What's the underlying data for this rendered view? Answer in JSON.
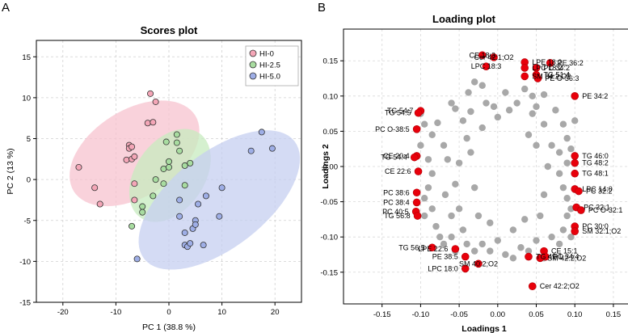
{
  "chart_data": [
    {
      "type": "scatter",
      "panel": "A",
      "title": "Scores plot",
      "xlabel": "PC 1 (38.8 %)",
      "ylabel": "PC 2 (13 %)",
      "xlim": [
        -25,
        25
      ],
      "ylim": [
        -15,
        17
      ],
      "xticks": [
        -20,
        -10,
        0,
        10,
        20
      ],
      "yticks": [
        -15,
        -10,
        -5,
        0,
        5,
        10,
        15
      ],
      "grid": true,
      "legend_position": "top-right",
      "series": [
        {
          "name": "HI-0",
          "color": "#f4a6b7",
          "ellipse_color": "#f7c3cf",
          "ellipse": {
            "cx": -6.5,
            "cy": 3.2,
            "rx": 13.5,
            "ry": 5.3,
            "angle_deg": 32
          },
          "points": [
            [
              -17,
              1.5
            ],
            [
              -14,
              -1
            ],
            [
              -13,
              -3
            ],
            [
              -8,
              2.4
            ],
            [
              -7.5,
              4.2
            ],
            [
              -7.5,
              3.8
            ],
            [
              -7,
              4
            ],
            [
              -7,
              2.5
            ],
            [
              -6.5,
              2.8
            ],
            [
              -6.5,
              -2.5
            ],
            [
              -6.5,
              -0.5
            ],
            [
              -4,
              6.9
            ],
            [
              -3.5,
              10.5
            ],
            [
              -3,
              7
            ],
            [
              -2.5,
              9.5
            ]
          ]
        },
        {
          "name": "HI-2.5",
          "color": "#a8dca0",
          "ellipse_color": "#c7ebbf",
          "ellipse": {
            "cx": 0.2,
            "cy": 0.5,
            "rx": 9.7,
            "ry": 4.2,
            "angle_deg": 55
          },
          "points": [
            [
              -7,
              -5.7
            ],
            [
              -5,
              -3.3
            ],
            [
              -5,
              -4
            ],
            [
              -3,
              -2
            ],
            [
              -2.5,
              0
            ],
            [
              -1,
              -0.5
            ],
            [
              -1,
              1.3
            ],
            [
              -0.5,
              4.6
            ],
            [
              0,
              1.5
            ],
            [
              0,
              2.2
            ],
            [
              1.5,
              4.5
            ],
            [
              1.5,
              5.5
            ],
            [
              2,
              3.5
            ],
            [
              3,
              1.7
            ],
            [
              3,
              -0.7
            ],
            [
              4,
              2
            ]
          ]
        },
        {
          "name": "HI-5.0",
          "color": "#9eaee6",
          "ellipse_color": "#c5cff0",
          "ellipse": {
            "cx": 9.5,
            "cy": -2.5,
            "rx": 18,
            "ry": 5.8,
            "angle_deg": 38
          },
          "points": [
            [
              -6,
              -9.7
            ],
            [
              2,
              -2.5
            ],
            [
              2,
              -4.5
            ],
            [
              3,
              -6.5
            ],
            [
              3,
              -8
            ],
            [
              3.5,
              -8.2
            ],
            [
              4,
              -7.8
            ],
            [
              4.5,
              -6
            ],
            [
              5,
              -5
            ],
            [
              5,
              -5.5
            ],
            [
              5.5,
              -3
            ],
            [
              6.5,
              -8
            ],
            [
              7,
              -2
            ],
            [
              9.5,
              -4.5
            ],
            [
              10,
              -1
            ],
            [
              15.5,
              3.5
            ],
            [
              17.5,
              5.8
            ],
            [
              19.5,
              3.8
            ]
          ]
        }
      ]
    },
    {
      "type": "scatter",
      "panel": "B",
      "title": "Loading plot",
      "xlabel": "Loadings 1",
      "ylabel": "Loadings 2",
      "xlim": [
        -0.2,
        0.17
      ],
      "ylim": [
        -0.195,
        0.195
      ],
      "xticks": [
        -0.15,
        -0.1,
        -0.05,
        0.0,
        0.05,
        0.1,
        0.15
      ],
      "yticks": [
        -0.15,
        -0.1,
        -0.05,
        0.0,
        0.05,
        0.1,
        0.15
      ],
      "xtick_labels": [
        "-0.15",
        "-0.10",
        "-0.05",
        "0.00",
        "0.05",
        "0.10",
        "0.15"
      ],
      "ytick_labels": [
        "-0.15",
        "-0.10",
        "-0.05",
        "0.00",
        "0.05",
        "0.10",
        "0.15"
      ],
      "grid": true,
      "other_points_color": "#a8a8a8",
      "highlight_color": "#e8000b",
      "other_points": [
        [
          -0.085,
          0.045
        ],
        [
          -0.078,
          0.062
        ],
        [
          -0.06,
          0.09
        ],
        [
          -0.055,
          0.082
        ],
        [
          -0.045,
          0.065
        ],
        [
          -0.035,
          0.078
        ],
        [
          -0.038,
          0.105
        ],
        [
          -0.03,
          0.12
        ],
        [
          -0.02,
          0.115
        ],
        [
          -0.015,
          0.09
        ],
        [
          -0.005,
          0.085
        ],
        [
          0.0,
          0.07
        ],
        [
          0.01,
          0.105
        ],
        [
          0.015,
          0.08
        ],
        [
          0.025,
          0.09
        ],
        [
          0.035,
          0.11
        ],
        [
          0.045,
          0.1
        ],
        [
          0.05,
          0.085
        ],
        [
          0.06,
          0.102
        ],
        [
          0.075,
          0.08
        ],
        [
          0.085,
          0.06
        ],
        [
          0.09,
          0.04
        ],
        [
          0.095,
          0.025
        ],
        [
          -0.095,
          0.06
        ],
        [
          -0.1,
          0.03
        ],
        [
          -0.09,
          0.01
        ],
        [
          -0.085,
          -0.01
        ],
        [
          -0.09,
          -0.03
        ],
        [
          -0.095,
          -0.045
        ],
        [
          -0.085,
          -0.06
        ],
        [
          -0.08,
          -0.085
        ],
        [
          -0.075,
          -0.1
        ],
        [
          -0.07,
          -0.11
        ],
        [
          -0.06,
          -0.1
        ],
        [
          -0.055,
          -0.12
        ],
        [
          -0.045,
          -0.09
        ],
        [
          -0.04,
          -0.11
        ],
        [
          -0.03,
          -0.12
        ],
        [
          -0.02,
          -0.11
        ],
        [
          -0.01,
          -0.12
        ],
        [
          0.0,
          -0.105
        ],
        [
          0.01,
          -0.125
        ],
        [
          0.02,
          -0.13
        ],
        [
          0.03,
          -0.115
        ],
        [
          0.04,
          -0.12
        ],
        [
          0.05,
          -0.105
        ],
        [
          0.06,
          -0.13
        ],
        [
          0.07,
          -0.1
        ],
        [
          0.08,
          -0.11
        ],
        [
          0.085,
          -0.09
        ],
        [
          0.09,
          -0.07
        ],
        [
          0.095,
          -0.06
        ],
        [
          0.09,
          -0.045
        ],
        [
          0.085,
          -0.03
        ],
        [
          0.08,
          -0.01
        ],
        [
          0.09,
          0.005
        ],
        [
          0.08,
          0.02
        ],
        [
          -0.07,
          0.03
        ],
        [
          -0.065,
          0.01
        ],
        [
          -0.068,
          -0.04
        ],
        [
          -0.06,
          -0.07
        ],
        [
          -0.05,
          -0.06
        ],
        [
          -0.04,
          0.04
        ],
        [
          -0.035,
          0.02
        ],
        [
          -0.03,
          -0.03
        ],
        [
          -0.02,
          0.055
        ],
        [
          -0.025,
          -0.07
        ],
        [
          -0.01,
          -0.08
        ],
        [
          0.02,
          -0.09
        ],
        [
          0.035,
          -0.075
        ],
        [
          0.055,
          -0.07
        ],
        [
          0.06,
          -0.04
        ],
        [
          0.065,
          0.0
        ],
        [
          0.07,
          0.03
        ],
        [
          0.06,
          0.06
        ],
        [
          0.045,
          0.075
        ],
        [
          -0.05,
          0.005
        ],
        [
          -0.055,
          -0.025
        ],
        [
          0.04,
          0.045
        ],
        [
          0.05,
          0.03
        ],
        [
          -0.1,
          0.075
        ],
        [
          -0.095,
          -0.07
        ],
        [
          0.095,
          -0.1
        ],
        [
          0.1,
          0.065
        ]
      ],
      "highlighted": [
        {
          "label": "Cer 42:1;O2",
          "x": -0.005,
          "y": 0.155
        },
        {
          "label": "CE 18:3",
          "x": -0.02,
          "y": 0.158
        },
        {
          "label": "LPC 18:3",
          "x": -0.015,
          "y": 0.142
        },
        {
          "label": "LPE 18:2",
          "x": 0.035,
          "y": 0.148
        },
        {
          "label": "LPC 18:2",
          "x": 0.035,
          "y": 0.14
        },
        {
          "label": "PC 34:2",
          "x": 0.05,
          "y": 0.14
        },
        {
          "label": "PE 36:2",
          "x": 0.068,
          "y": 0.147
        },
        {
          "label": "TG 51:4",
          "x": 0.05,
          "y": 0.13
        },
        {
          "label": "SM 34:2;O2",
          "x": 0.035,
          "y": 0.128
        },
        {
          "label": "PE O-36:3",
          "x": 0.052,
          "y": 0.125
        },
        {
          "label": "PE 34:2",
          "x": 0.1,
          "y": 0.1
        },
        {
          "label": "TG 54:7",
          "x": -0.1,
          "y": 0.079
        },
        {
          "label": "TG 54:5",
          "x": -0.103,
          "y": 0.076
        },
        {
          "label": "PC O-38:5",
          "x": -0.105,
          "y": 0.053
        },
        {
          "label": "CE 20:4",
          "x": -0.105,
          "y": 0.015
        },
        {
          "label": "TG 54:4",
          "x": -0.108,
          "y": 0.013
        },
        {
          "label": "CE 22:6",
          "x": -0.103,
          "y": -0.007
        },
        {
          "label": "PC 38:6",
          "x": -0.105,
          "y": -0.037
        },
        {
          "label": "PC 38:4",
          "x": -0.105,
          "y": -0.051
        },
        {
          "label": "PC 40:5",
          "x": -0.106,
          "y": -0.064
        },
        {
          "label": "TG 56:8",
          "x": -0.104,
          "y": -0.07
        },
        {
          "label": "TG 46:0",
          "x": 0.1,
          "y": 0.015
        },
        {
          "label": "TG 48:2",
          "x": 0.1,
          "y": 0.005
        },
        {
          "label": "TG 48:1",
          "x": 0.1,
          "y": -0.01
        },
        {
          "label": "LPC 14:0",
          "x": 0.1,
          "y": -0.032
        },
        {
          "label": "PC 32:2",
          "x": 0.105,
          "y": -0.035
        },
        {
          "label": "PC 32:1",
          "x": 0.102,
          "y": -0.058
        },
        {
          "label": "PC O-32:1",
          "x": 0.108,
          "y": -0.062
        },
        {
          "label": "PC 30:0",
          "x": 0.1,
          "y": -0.085
        },
        {
          "label": "SM 32:1;O2",
          "x": 0.1,
          "y": -0.092
        },
        {
          "label": "TG 56:5",
          "x": -0.085,
          "y": -0.115
        },
        {
          "label": "LPE 22:6",
          "x": -0.055,
          "y": -0.117
        },
        {
          "label": "PE 38:5",
          "x": -0.042,
          "y": -0.128
        },
        {
          "label": "LPC 18:0",
          "x": -0.042,
          "y": -0.145
        },
        {
          "label": "SM 40:2;O2",
          "x": -0.025,
          "y": -0.138
        },
        {
          "label": "TG 49:1",
          "x": 0.04,
          "y": -0.128
        },
        {
          "label": "CE 15:1",
          "x": 0.06,
          "y": -0.12
        },
        {
          "label": "PC 34:4",
          "x": 0.062,
          "y": -0.128
        },
        {
          "label": "SM 42:2;O2",
          "x": 0.055,
          "y": -0.13
        },
        {
          "label": "Cer 42:2;O2",
          "x": 0.045,
          "y": -0.17
        }
      ]
    }
  ],
  "panels": {
    "a_letter": "A",
    "b_letter": "B"
  }
}
